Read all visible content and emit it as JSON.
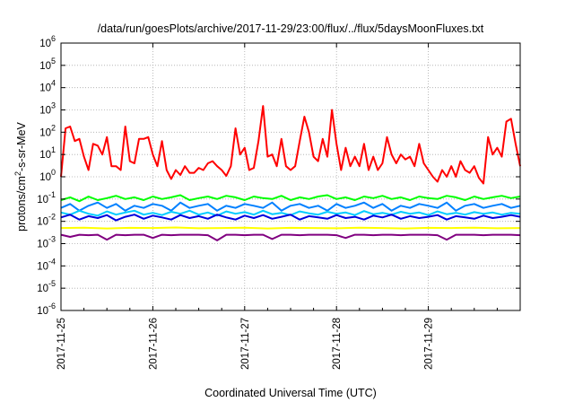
{
  "chart_data": {
    "type": "line",
    "title": "/data/run/goesPlots/archive/2017-11-29/23:00/flux/../flux/5daysMoonFluxes.txt",
    "xlabel": "Coordinated Universal Time (UTC)",
    "ylabel": {
      "prefix": "protons/cm",
      "sup": "2",
      "suffix": "-s-sr-MeV"
    },
    "yscale": "log",
    "ylim": [
      1e-06,
      1000000.0
    ],
    "xlim": [
      "2017-11-25",
      "2017-11-30"
    ],
    "grid": true,
    "x_ticks": [
      "2017-11-25",
      "2017-11-26",
      "2017-11-27",
      "2017-11-28",
      "2017-11-29"
    ],
    "y_ticks": [
      {
        "base": "10",
        "exp": "-6"
      },
      {
        "base": "10",
        "exp": "-5"
      },
      {
        "base": "10",
        "exp": "-4"
      },
      {
        "base": "10",
        "exp": "-3"
      },
      {
        "base": "10",
        "exp": "-2"
      },
      {
        "base": "10",
        "exp": "-1"
      },
      {
        "base": "10",
        "exp": "0"
      },
      {
        "base": "10",
        "exp": "1"
      },
      {
        "base": "10",
        "exp": "2"
      },
      {
        "base": "10",
        "exp": "3"
      },
      {
        "base": "10",
        "exp": "4"
      },
      {
        "base": "10",
        "exp": "5"
      },
      {
        "base": "10",
        "exp": "6"
      }
    ],
    "series": [
      {
        "color": "#ff0000",
        "x": [
          0,
          0.05,
          0.1,
          0.15,
          0.2,
          0.25,
          0.3,
          0.35,
          0.4,
          0.45,
          0.5,
          0.55,
          0.6,
          0.65,
          0.7,
          0.75,
          0.8,
          0.85,
          0.9,
          0.95,
          1.0,
          1.05,
          1.1,
          1.15,
          1.2,
          1.25,
          1.3,
          1.35,
          1.4,
          1.45,
          1.5,
          1.55,
          1.6,
          1.65,
          1.7,
          1.75,
          1.8,
          1.85,
          1.9,
          1.95,
          2.0,
          2.05,
          2.1,
          2.15,
          2.2,
          2.25,
          2.3,
          2.35,
          2.4,
          2.45,
          2.5,
          2.55,
          2.6,
          2.65,
          2.7,
          2.75,
          2.8,
          2.85,
          2.9,
          2.95,
          3.0,
          3.05,
          3.1,
          3.15,
          3.2,
          3.25,
          3.3,
          3.35,
          3.4,
          3.45,
          3.5,
          3.55,
          3.6,
          3.65,
          3.7,
          3.75,
          3.8,
          3.85,
          3.9,
          3.95,
          4.0,
          4.05,
          4.1,
          4.15,
          4.2,
          4.25,
          4.3,
          4.35,
          4.4,
          4.45,
          4.5,
          4.55,
          4.6,
          4.65,
          4.7,
          4.75,
          4.8,
          4.85,
          4.9,
          4.95,
          5.0
        ],
        "y": [
          1,
          150,
          180,
          40,
          50,
          8,
          2,
          30,
          25,
          10,
          60,
          3,
          3,
          2,
          180,
          5,
          4,
          50,
          50,
          60,
          10,
          3,
          40,
          2,
          0.8,
          2,
          1.2,
          3,
          1.5,
          1.5,
          2.5,
          2,
          4,
          5,
          3,
          2,
          1.1,
          3,
          150,
          10,
          20,
          2,
          2.5,
          40,
          1500,
          8,
          10,
          3,
          50,
          3,
          2,
          3,
          40,
          500,
          100,
          8,
          5,
          50,
          8,
          1000,
          30,
          2,
          20,
          3,
          8,
          3,
          30,
          2,
          8,
          2,
          4,
          60,
          10,
          4,
          10,
          6,
          8,
          3,
          30,
          4,
          2,
          1,
          0.6,
          2,
          1,
          3,
          1,
          5,
          2,
          1.5,
          3,
          0.9,
          0.5,
          60,
          10,
          20,
          8,
          300,
          400,
          30,
          3
        ]
      },
      {
        "color": "#00ff00",
        "x": [
          0,
          0.1,
          0.2,
          0.3,
          0.4,
          0.5,
          0.6,
          0.7,
          0.8,
          0.9,
          1.0,
          1.1,
          1.2,
          1.3,
          1.4,
          1.5,
          1.6,
          1.7,
          1.8,
          1.9,
          2.0,
          2.1,
          2.2,
          2.3,
          2.4,
          2.5,
          2.6,
          2.7,
          2.8,
          2.9,
          3.0,
          3.1,
          3.2,
          3.3,
          3.4,
          3.5,
          3.6,
          3.7,
          3.8,
          3.9,
          4.0,
          4.1,
          4.2,
          4.3,
          4.4,
          4.5,
          4.6,
          4.7,
          4.8,
          4.9,
          5.0
        ],
        "y": [
          0.09,
          0.12,
          0.08,
          0.13,
          0.09,
          0.11,
          0.14,
          0.1,
          0.12,
          0.09,
          0.13,
          0.1,
          0.12,
          0.15,
          0.09,
          0.11,
          0.13,
          0.1,
          0.14,
          0.12,
          0.09,
          0.13,
          0.11,
          0.1,
          0.14,
          0.09,
          0.12,
          0.1,
          0.13,
          0.15,
          0.1,
          0.12,
          0.09,
          0.13,
          0.11,
          0.14,
          0.1,
          0.12,
          0.09,
          0.13,
          0.11,
          0.1,
          0.14,
          0.12,
          0.09,
          0.13,
          0.1,
          0.12,
          0.14,
          0.11,
          0.13
        ]
      },
      {
        "color": "#0080ff",
        "x": [
          0,
          0.1,
          0.2,
          0.3,
          0.4,
          0.5,
          0.6,
          0.7,
          0.8,
          0.9,
          1.0,
          1.1,
          1.2,
          1.3,
          1.4,
          1.5,
          1.6,
          1.7,
          1.8,
          1.9,
          2.0,
          2.1,
          2.2,
          2.3,
          2.4,
          2.5,
          2.6,
          2.7,
          2.8,
          2.9,
          3.0,
          3.1,
          3.2,
          3.3,
          3.4,
          3.5,
          3.6,
          3.7,
          3.8,
          3.9,
          4.0,
          4.1,
          4.2,
          4.3,
          4.4,
          4.5,
          4.6,
          4.7,
          4.8,
          4.9,
          5.0
        ],
        "y": [
          0.04,
          0.06,
          0.03,
          0.05,
          0.07,
          0.04,
          0.06,
          0.03,
          0.05,
          0.04,
          0.06,
          0.05,
          0.03,
          0.07,
          0.04,
          0.05,
          0.06,
          0.03,
          0.05,
          0.04,
          0.06,
          0.05,
          0.04,
          0.07,
          0.03,
          0.05,
          0.06,
          0.04,
          0.05,
          0.03,
          0.06,
          0.04,
          0.05,
          0.07,
          0.04,
          0.06,
          0.03,
          0.05,
          0.04,
          0.06,
          0.05,
          0.04,
          0.07,
          0.03,
          0.05,
          0.06,
          0.04,
          0.05,
          0.06,
          0.04,
          0.05
        ]
      },
      {
        "color": "#00ccff",
        "x": [
          0,
          0.1,
          0.2,
          0.3,
          0.4,
          0.5,
          0.6,
          0.7,
          0.8,
          0.9,
          1.0,
          1.1,
          1.2,
          1.3,
          1.4,
          1.5,
          1.6,
          1.7,
          1.8,
          1.9,
          2.0,
          2.1,
          2.2,
          2.3,
          2.4,
          2.5,
          2.6,
          2.7,
          2.8,
          2.9,
          3.0,
          3.1,
          3.2,
          3.3,
          3.4,
          3.5,
          3.6,
          3.7,
          3.8,
          3.9,
          4.0,
          4.1,
          4.2,
          4.3,
          4.4,
          4.5,
          4.6,
          4.7,
          4.8,
          4.9,
          5.0
        ],
        "y": [
          0.025,
          0.02,
          0.03,
          0.022,
          0.018,
          0.028,
          0.02,
          0.025,
          0.03,
          0.02,
          0.024,
          0.019,
          0.027,
          0.022,
          0.03,
          0.02,
          0.025,
          0.018,
          0.028,
          0.022,
          0.026,
          0.02,
          0.03,
          0.021,
          0.024,
          0.019,
          0.028,
          0.023,
          0.02,
          0.027,
          0.022,
          0.025,
          0.019,
          0.029,
          0.021,
          0.024,
          0.02,
          0.027,
          0.022,
          0.025,
          0.019,
          0.028,
          0.021,
          0.024,
          0.02,
          0.026,
          0.022,
          0.025,
          0.02,
          0.024,
          0.022
        ]
      },
      {
        "color": "#0000dd",
        "x": [
          0,
          0.1,
          0.2,
          0.3,
          0.4,
          0.5,
          0.6,
          0.7,
          0.8,
          0.9,
          1.0,
          1.1,
          1.2,
          1.3,
          1.4,
          1.5,
          1.6,
          1.7,
          1.8,
          1.9,
          2.0,
          2.1,
          2.2,
          2.3,
          2.4,
          2.5,
          2.6,
          2.7,
          2.8,
          2.9,
          3.0,
          3.1,
          3.2,
          3.3,
          3.4,
          3.5,
          3.6,
          3.7,
          3.8,
          3.9,
          4.0,
          4.1,
          4.2,
          4.3,
          4.4,
          4.5,
          4.6,
          4.7,
          4.8,
          4.9,
          5.0
        ],
        "y": [
          0.015,
          0.02,
          0.012,
          0.017,
          0.014,
          0.019,
          0.011,
          0.016,
          0.02,
          0.013,
          0.018,
          0.015,
          0.012,
          0.019,
          0.014,
          0.017,
          0.013,
          0.02,
          0.015,
          0.012,
          0.018,
          0.014,
          0.019,
          0.013,
          0.016,
          0.02,
          0.012,
          0.017,
          0.015,
          0.013,
          0.019,
          0.014,
          0.016,
          0.012,
          0.018,
          0.015,
          0.02,
          0.013,
          0.017,
          0.014,
          0.016,
          0.019,
          0.012,
          0.017,
          0.015,
          0.013,
          0.018,
          0.014,
          0.016,
          0.019,
          0.016
        ]
      },
      {
        "color": "#ffff00",
        "x": [
          0,
          0.25,
          0.5,
          0.75,
          1.0,
          1.25,
          1.5,
          1.75,
          2.0,
          2.25,
          2.5,
          2.75,
          3.0,
          3.25,
          3.5,
          3.75,
          4.0,
          4.25,
          4.5,
          4.75,
          5.0
        ],
        "y": [
          0.005,
          0.0052,
          0.0048,
          0.0051,
          0.005,
          0.0053,
          0.0049,
          0.005,
          0.0052,
          0.0048,
          0.0051,
          0.005,
          0.0049,
          0.0052,
          0.005,
          0.0048,
          0.0051,
          0.005,
          0.0052,
          0.0049,
          0.005
        ]
      },
      {
        "color": "#800080",
        "x": [
          0,
          0.1,
          0.2,
          0.3,
          0.4,
          0.5,
          0.6,
          0.7,
          0.8,
          0.9,
          1.0,
          1.1,
          1.2,
          1.3,
          1.4,
          1.5,
          1.6,
          1.7,
          1.8,
          1.9,
          2.0,
          2.1,
          2.2,
          2.3,
          2.4,
          2.5,
          2.6,
          2.7,
          2.8,
          2.9,
          3.0,
          3.1,
          3.2,
          3.3,
          3.4,
          3.5,
          3.6,
          3.7,
          3.8,
          3.9,
          4.0,
          4.1,
          4.2,
          4.3,
          4.4,
          4.5,
          4.6,
          4.7,
          4.8,
          4.9,
          5.0
        ],
        "y": [
          0.0025,
          0.002,
          0.0025,
          0.0024,
          0.0025,
          0.0015,
          0.0025,
          0.0024,
          0.0025,
          0.0025,
          0.0018,
          0.0025,
          0.0024,
          0.0025,
          0.0025,
          0.0025,
          0.0024,
          0.0014,
          0.0025,
          0.0025,
          0.0024,
          0.0025,
          0.0025,
          0.0016,
          0.0025,
          0.0025,
          0.0024,
          0.0025,
          0.0025,
          0.0025,
          0.0024,
          0.0018,
          0.0025,
          0.0025,
          0.0024,
          0.0025,
          0.0025,
          0.0024,
          0.0025,
          0.0025,
          0.0025,
          0.0024,
          0.0015,
          0.0025,
          0.0025,
          0.0025,
          0.0024,
          0.0025,
          0.0025,
          0.0025,
          0.0024
        ]
      }
    ]
  }
}
